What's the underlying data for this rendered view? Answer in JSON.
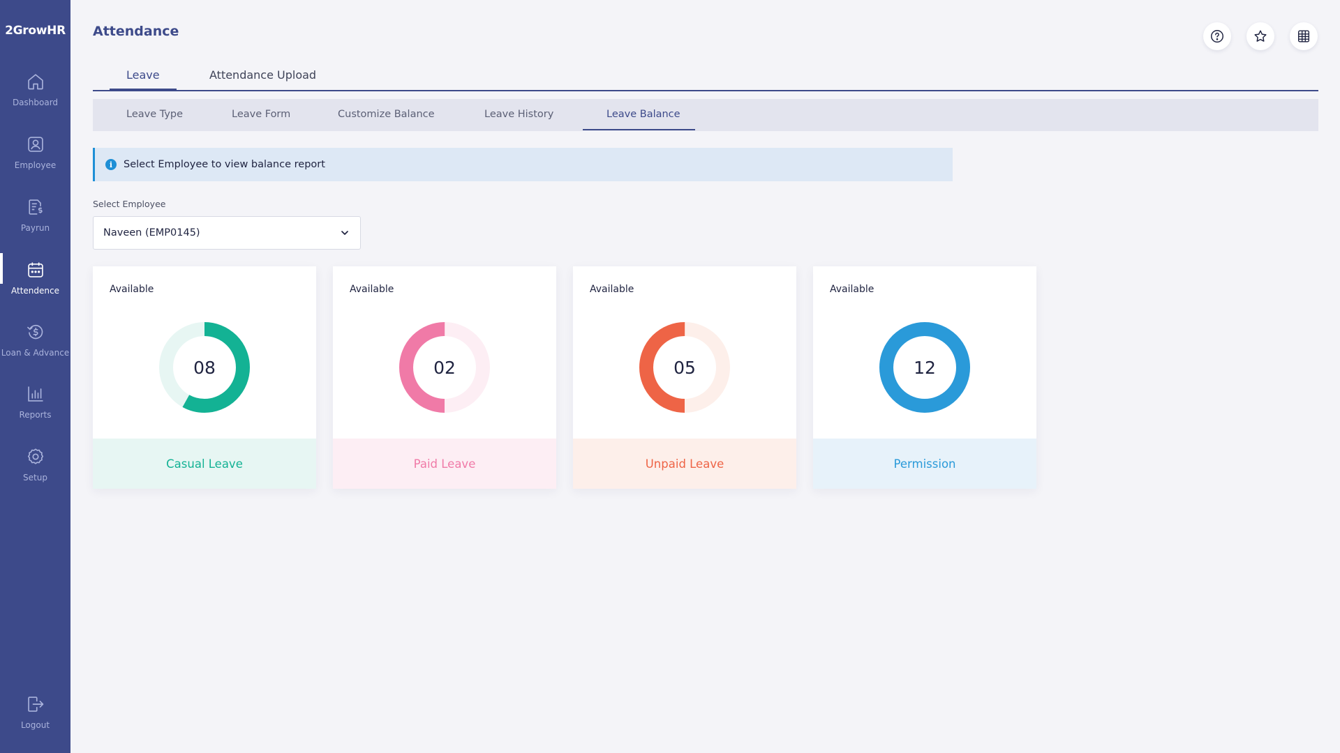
{
  "app": {
    "logo": "2GrowHR"
  },
  "sidebar": {
    "items": [
      {
        "label": "Dashboard",
        "icon": "home-icon"
      },
      {
        "label": "Employee",
        "icon": "employee-icon"
      },
      {
        "label": "Payrun",
        "icon": "payrun-icon"
      },
      {
        "label": "Attendence",
        "icon": "calendar-icon",
        "active": true
      },
      {
        "label": "Loan & Advance",
        "icon": "loan-icon"
      },
      {
        "label": "Reports",
        "icon": "reports-icon"
      },
      {
        "label": "Setup",
        "icon": "gear-icon"
      },
      {
        "label": "Logout",
        "icon": "logout-icon"
      }
    ]
  },
  "header": {
    "title": "Attendance",
    "buttons": [
      "help-icon",
      "star-icon",
      "building-icon"
    ]
  },
  "tabs": {
    "main": [
      {
        "label": "Leave",
        "active": true
      },
      {
        "label": "Attendance Upload"
      }
    ],
    "sub": [
      {
        "label": "Leave Type"
      },
      {
        "label": "Leave Form"
      },
      {
        "label": "Customize Balance"
      },
      {
        "label": "Leave History"
      },
      {
        "label": "Leave Balance",
        "active": true
      }
    ]
  },
  "info": {
    "icon": "info-icon",
    "text": "Select Employee to view balance report"
  },
  "employee_select": {
    "label": "Select Employee",
    "value": "Naveen (EMP0145)"
  },
  "cards": [
    {
      "heading": "Available",
      "value": "08",
      "fill_fraction": 0.58,
      "name": "Casual Leave",
      "color": "#13b294",
      "track": "#e7f6f3",
      "footer_bg": "#e7f6f3"
    },
    {
      "heading": "Available",
      "value": "02",
      "fill_fraction": 0.5,
      "name": "Paid Leave",
      "color": "#f07aa7",
      "track": "#fdeef4",
      "footer_bg": "#fdeef4"
    },
    {
      "heading": "Available",
      "value": "05",
      "fill_fraction": 0.5,
      "name": "Unpaid Leave",
      "color": "#ee6446",
      "track": "#fdefea",
      "footer_bg": "#fdefea"
    },
    {
      "heading": "Available",
      "value": "12",
      "fill_fraction": 1.0,
      "name": "Permission",
      "color": "#2a9ad9",
      "track": "#e7f2fa",
      "footer_bg": "#e7f2fa"
    }
  ],
  "colors": {
    "sidebar": "#3d4a8a",
    "accent": "#3d4a8a",
    "info": "#1e8fd6"
  }
}
